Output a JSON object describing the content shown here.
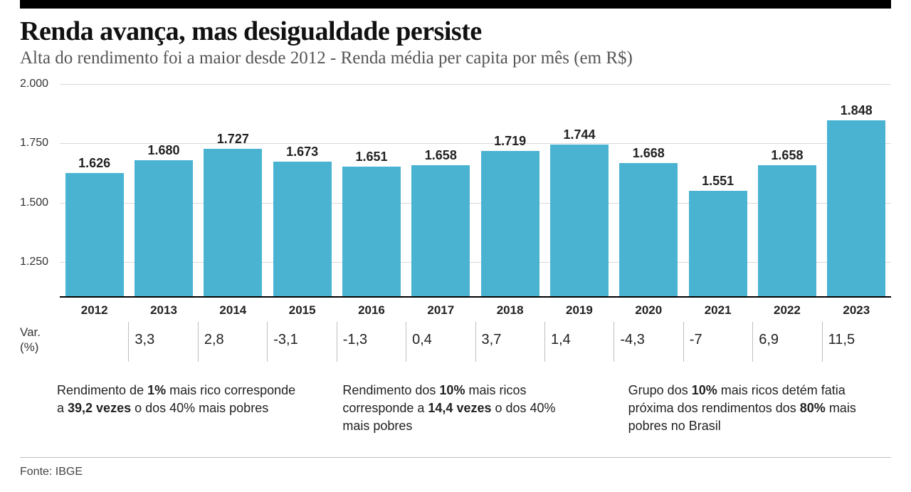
{
  "title": "Renda avança, mas desigualdade persiste",
  "subtitle": "Alta do rendimento foi a maior desde 2012 - Renda média per capita por mês (em R$)",
  "chart": {
    "type": "bar",
    "categories": [
      "2012",
      "2013",
      "2014",
      "2015",
      "2016",
      "2017",
      "2018",
      "2019",
      "2020",
      "2021",
      "2022",
      "2023"
    ],
    "values": [
      1626,
      1680,
      1727,
      1673,
      1651,
      1658,
      1719,
      1744,
      1668,
      1551,
      1658,
      1848
    ],
    "value_labels": [
      "1.626",
      "1.680",
      "1.727",
      "1.673",
      "1.651",
      "1.658",
      "1.719",
      "1.744",
      "1.668",
      "1.551",
      "1.658",
      "1.848"
    ],
    "bar_color": "#4bb3d2",
    "ymin": 1100,
    "ymax": 2000,
    "yticks": [
      2000,
      1750,
      1500,
      1250
    ],
    "ytick_labels": [
      "2.000",
      "1.750",
      "1.500",
      "1.250"
    ],
    "grid_color": "#d9d9d9",
    "baseline_color": "#000000",
    "background_color": "#ffffff",
    "value_label_fontsize": 18,
    "value_label_weight": "700",
    "xlabel_fontsize": 17,
    "xlabel_weight": "700",
    "bar_width_ratio": 0.84
  },
  "variation": {
    "label_line1": "Var.",
    "label_line2": "(%)",
    "values": [
      "",
      "3,3",
      "2,8",
      "-3,1",
      "-1,3",
      "0,4",
      "3,7",
      "1,4",
      "-4,3",
      "-7",
      "6,9",
      "11,5"
    ],
    "fontsize": 20
  },
  "facts": [
    {
      "parts": [
        {
          "t": "Rendimento de ",
          "b": false
        },
        {
          "t": "1%",
          "b": true
        },
        {
          "t": " mais rico corresponde a ",
          "b": false
        },
        {
          "t": "39,2 vezes",
          "b": true
        },
        {
          "t": " o dos 40% mais pobres",
          "b": false
        }
      ]
    },
    {
      "parts": [
        {
          "t": "Rendimento dos ",
          "b": false
        },
        {
          "t": "10%",
          "b": true
        },
        {
          "t": " mais ricos corresponde a ",
          "b": false
        },
        {
          "t": "14,4 vezes",
          "b": true
        },
        {
          "t": " o dos 40% mais pobres",
          "b": false
        }
      ]
    },
    {
      "parts": [
        {
          "t": "Grupo dos ",
          "b": false
        },
        {
          "t": "10%",
          "b": true
        },
        {
          "t": " mais ricos detém fatia próxima dos rendimentos dos ",
          "b": false
        },
        {
          "t": "80%",
          "b": true
        },
        {
          "t": " mais pobres no Brasil",
          "b": false
        }
      ]
    }
  ],
  "source": "Fonte: IBGE",
  "colors": {
    "top_rule": "#000000",
    "text_primary": "#111111",
    "text_secondary": "#555555",
    "divider": "#bfbfbf"
  }
}
